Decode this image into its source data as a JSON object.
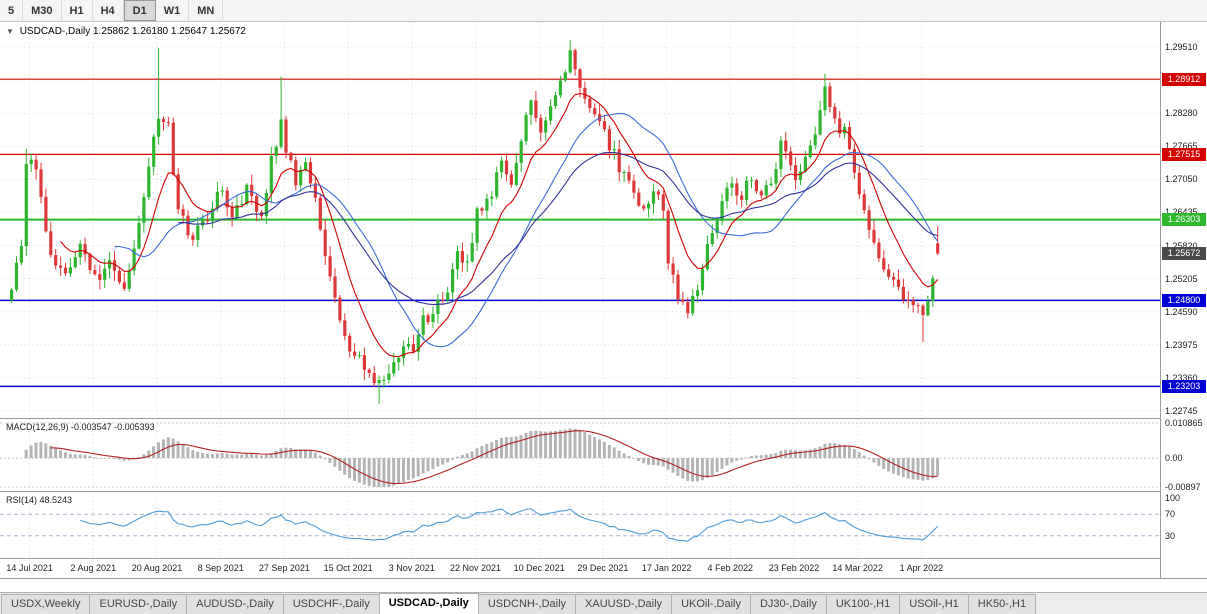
{
  "toolbar": {
    "timeframes": [
      {
        "label": "5",
        "active": false
      },
      {
        "label": "M30",
        "active": false
      },
      {
        "label": "H1",
        "active": false
      },
      {
        "label": "H4",
        "active": false
      },
      {
        "label": "D1",
        "active": true
      },
      {
        "label": "W1",
        "active": false
      },
      {
        "label": "MN",
        "active": false
      }
    ]
  },
  "chart_title": {
    "symbol": "USDCAD-,Daily",
    "ohlc": "1.25862 1.26180 1.25647 1.25672"
  },
  "indicators": {
    "macd_label": "MACD(12,26,9)",
    "macd_values": "-0.003547 -0.005393",
    "macd_axis": [
      "0.010865",
      "0.00",
      "-0.00897"
    ],
    "rsi_label": "RSI(14)",
    "rsi_value": "48.5243",
    "rsi_axis": [
      "100",
      "70",
      "30"
    ]
  },
  "colors": {
    "up": "#2db52d",
    "down": "#dd3838",
    "grid": "#dcdcdc",
    "background": "#ffffff"
  },
  "chart_data": {
    "type": "candlestick",
    "symbol": "USDCAD",
    "timeframe": "Daily",
    "quote": {
      "open": 1.25862,
      "high": 1.2618,
      "low": 1.25647,
      "close": 1.25672
    },
    "y_ticks": [
      "1.29510",
      "1.28280",
      "1.27665",
      "1.27050",
      "1.26435",
      "1.25820",
      "1.25205",
      "1.24590",
      "1.23975",
      "1.23360",
      "1.22745"
    ],
    "grid": {
      "price_first": 1.2951,
      "price_step": 0.00615,
      "price_lines": 12
    },
    "levels": [
      {
        "price": 1.28912,
        "label": "1.28912",
        "color": "#d40000",
        "kind": "resistance"
      },
      {
        "price": 1.27515,
        "label": "1.27515",
        "color": "#d40000",
        "kind": "resistance"
      },
      {
        "price": 1.26303,
        "label": "1.26303",
        "color": "#2eb82e",
        "kind": "pivot"
      },
      {
        "price": 1.248,
        "label": "1.24800",
        "color": "#0000d4",
        "kind": "support"
      },
      {
        "price": 1.23203,
        "label": "1.23203",
        "color": "#0000d4",
        "kind": "support"
      }
    ],
    "current": {
      "price": 1.25672,
      "label": "1.25672",
      "color": "#4a4a4a"
    },
    "x_labels": [
      "14 Jul 2021",
      "2 Aug 2021",
      "20 Aug 2021",
      "8 Sep 2021",
      "27 Sep 2021",
      "15 Oct 2021",
      "3 Nov 2021",
      "22 Nov 2021",
      "10 Dec 2021",
      "29 Dec 2021",
      "17 Jan 2022",
      "4 Feb 2022",
      "23 Feb 2022",
      "14 Mar 2022",
      "1 Apr 2022"
    ],
    "x_label_first_index": 4,
    "x_label_step": 13,
    "candles": {
      "count": 190,
      "close_anchors": [
        [
          0,
          1.25
        ],
        [
          2,
          1.259
        ],
        [
          3,
          1.2745
        ],
        [
          5,
          1.272
        ],
        [
          8,
          1.2555
        ],
        [
          11,
          1.253
        ],
        [
          14,
          1.2585
        ],
        [
          17,
          1.252
        ],
        [
          20,
          1.2545
        ],
        [
          23,
          1.25
        ],
        [
          26,
          1.262
        ],
        [
          29,
          1.279
        ],
        [
          30,
          1.282
        ],
        [
          32,
          1.28
        ],
        [
          34,
          1.265
        ],
        [
          37,
          1.259
        ],
        [
          40,
          1.264
        ],
        [
          43,
          1.269
        ],
        [
          45,
          1.263
        ],
        [
          48,
          1.269
        ],
        [
          51,
          1.264
        ],
        [
          53,
          1.274
        ],
        [
          55,
          1.2815
        ],
        [
          56,
          1.276
        ],
        [
          58,
          1.27
        ],
        [
          60,
          1.274
        ],
        [
          62,
          1.266
        ],
        [
          64,
          1.256
        ],
        [
          66,
          1.2475
        ],
        [
          69,
          1.239
        ],
        [
          72,
          1.236
        ],
        [
          75,
          1.232
        ],
        [
          78,
          1.2365
        ],
        [
          80,
          1.239
        ],
        [
          82,
          1.2395
        ],
        [
          84,
          1.2445
        ],
        [
          86,
          1.2455
        ],
        [
          89,
          1.25
        ],
        [
          91,
          1.2565
        ],
        [
          93,
          1.255
        ],
        [
          95,
          1.264
        ],
        [
          98,
          1.268
        ],
        [
          100,
          1.2735
        ],
        [
          102,
          1.2705
        ],
        [
          104,
          1.2785
        ],
        [
          106,
          1.284
        ],
        [
          108,
          1.28
        ],
        [
          110,
          1.285
        ],
        [
          112,
          1.288
        ],
        [
          114,
          1.2935
        ],
        [
          116,
          1.287
        ],
        [
          118,
          1.283
        ],
        [
          121,
          1.279
        ],
        [
          124,
          1.273
        ],
        [
          127,
          1.268
        ],
        [
          129,
          1.264
        ],
        [
          131,
          1.269
        ],
        [
          133,
          1.264
        ],
        [
          134,
          1.255
        ],
        [
          136,
          1.248
        ],
        [
          138,
          1.2455
        ],
        [
          140,
          1.251
        ],
        [
          142,
          1.2575
        ],
        [
          144,
          1.264
        ],
        [
          146,
          1.268
        ],
        [
          147,
          1.27
        ],
        [
          149,
          1.267
        ],
        [
          151,
          1.271
        ],
        [
          153,
          1.267
        ],
        [
          155,
          1.27
        ],
        [
          157,
          1.277
        ],
        [
          159,
          1.273
        ],
        [
          160,
          1.27
        ],
        [
          162,
          1.274
        ],
        [
          164,
          1.279
        ],
        [
          166,
          1.287
        ],
        [
          168,
          1.281
        ],
        [
          170,
          1.279
        ],
        [
          173,
          1.268
        ],
        [
          175,
          1.262
        ],
        [
          177,
          1.256
        ],
        [
          179,
          1.252
        ],
        [
          181,
          1.25
        ],
        [
          183,
          1.247
        ],
        [
          185,
          1.248
        ],
        [
          186,
          1.244
        ],
        [
          187,
          1.248
        ],
        [
          188,
          1.252
        ],
        [
          189,
          1.2567
        ]
      ],
      "wick_overrides": [
        {
          "i": 3,
          "high": 1.2762
        },
        {
          "i": 30,
          "high": 1.2949
        },
        {
          "i": 55,
          "high": 1.2896
        },
        {
          "i": 75,
          "low": 1.2288
        },
        {
          "i": 114,
          "high": 1.2964
        },
        {
          "i": 166,
          "high": 1.2901
        },
        {
          "i": 186,
          "low": 1.2403
        }
      ]
    },
    "moving_averages": [
      {
        "name": "fast",
        "type": "ema",
        "period": 10,
        "color": "#d10000"
      },
      {
        "name": "medium",
        "type": "sma",
        "period": 22,
        "color": "#3b6bd6"
      },
      {
        "name": "slow",
        "type": "ema",
        "period": 34,
        "color": "#31319c"
      }
    ],
    "macd": {
      "fast": 12,
      "slow": 26,
      "signal": 9,
      "value": -0.003547,
      "signal_value": -0.005393,
      "range": [
        -0.00897,
        0.010865
      ],
      "histogram_color": "#b4b4b4",
      "signal_color": "#b22222"
    },
    "rsi": {
      "period": 14,
      "value": 48.5243,
      "levels": [
        70,
        30
      ],
      "color": "#4f9cd6",
      "range": [
        0,
        100
      ]
    }
  },
  "tabs": [
    {
      "label": "USDX,Weekly",
      "active": false
    },
    {
      "label": "EURUSD-,Daily",
      "active": false
    },
    {
      "label": "AUDUSD-,Daily",
      "active": false
    },
    {
      "label": "USDCHF-,Daily",
      "active": false
    },
    {
      "label": "USDCAD-,Daily",
      "active": true
    },
    {
      "label": "USDCNH-,Daily",
      "active": false
    },
    {
      "label": "XAUUSD-,Daily",
      "active": false
    },
    {
      "label": "UKOil-,Daily",
      "active": false
    },
    {
      "label": "DJ30-,Daily",
      "active": false
    },
    {
      "label": "UK100-,H1",
      "active": false
    },
    {
      "label": "USOil-,H1",
      "active": false
    },
    {
      "label": "HK50-,H1",
      "active": false
    }
  ]
}
